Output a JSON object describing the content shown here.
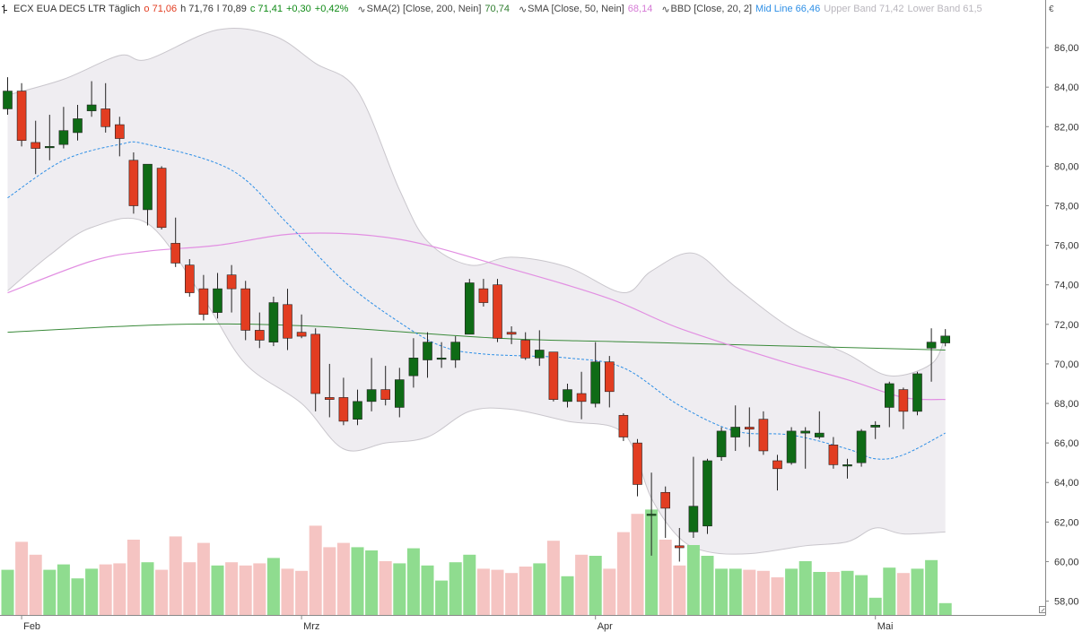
{
  "header": {
    "symbol": "ECX EUA DEC5 LTR Täglich",
    "open": "o 71,06",
    "high": "h 71,76",
    "low": "l 70,89",
    "close": "c 71,41",
    "change": "+0,30",
    "change_pct": "+0,42%",
    "sma200_label": "SMA(2) [Close, 200, Nein]",
    "sma200_value": "70,74",
    "sma50_label": "SMA [Close, 50, Nein]",
    "sma50_value": "68,14",
    "bbd_label": "BBD [Close, 20, 2]",
    "mid_line": "Mid Line 66,46",
    "upper_band": "Upper Band 71,42",
    "lower_band": "Lower Band 61,5",
    "currency": "€"
  },
  "colors": {
    "up": "#0f6b16",
    "down": "#e23d21",
    "vol_up": "#8fdc8f",
    "vol_down": "#f5c4c2",
    "band_fill": "#efedf1",
    "band_line": "#c9c6cc",
    "sma200": "#3a8a3a",
    "sma50": "#e28fe2",
    "mid_line": "#2e8fe6"
  },
  "chart_data": {
    "type": "candlestick",
    "y_axis": {
      "min": 57.3,
      "max": 87.5,
      "ticks": [
        "58,00",
        "60,00",
        "62,00",
        "64,00",
        "66,00",
        "68,00",
        "70,00",
        "72,00",
        "74,00",
        "76,00",
        "78,00",
        "80,00",
        "82,00",
        "84,00",
        "86,00"
      ],
      "tick_values": [
        58,
        60,
        62,
        64,
        66,
        68,
        70,
        72,
        74,
        76,
        78,
        80,
        82,
        84,
        86
      ]
    },
    "x_labels": [
      {
        "label": "Feb",
        "index": 1
      },
      {
        "label": "Mrz",
        "index": 21
      },
      {
        "label": "Apr",
        "index": 42
      },
      {
        "label": "Mai",
        "index": 62
      }
    ],
    "ohlc": [
      [
        82.9,
        84.5,
        82.6,
        83.8
      ],
      [
        83.8,
        84.2,
        81.0,
        81.3
      ],
      [
        81.2,
        82.3,
        79.6,
        80.9
      ],
      [
        81.0,
        82.6,
        80.3,
        81.0
      ],
      [
        81.1,
        83.0,
        80.9,
        81.8
      ],
      [
        81.7,
        83.1,
        81.3,
        82.4
      ],
      [
        82.8,
        84.3,
        82.5,
        83.1
      ],
      [
        82.9,
        84.2,
        81.7,
        82.0
      ],
      [
        82.1,
        82.5,
        80.5,
        81.4
      ],
      [
        80.3,
        80.7,
        77.6,
        78.0
      ],
      [
        77.8,
        80.1,
        77.0,
        80.1
      ],
      [
        79.9,
        80.0,
        76.8,
        76.9
      ],
      [
        76.1,
        77.4,
        74.9,
        75.1
      ],
      [
        75.0,
        75.3,
        73.4,
        73.6
      ],
      [
        73.8,
        74.5,
        72.2,
        72.5
      ],
      [
        72.6,
        74.6,
        72.3,
        73.8
      ],
      [
        74.5,
        75.0,
        72.6,
        73.8
      ],
      [
        73.8,
        74.2,
        71.2,
        71.7
      ],
      [
        71.7,
        72.6,
        70.8,
        71.2
      ],
      [
        71.1,
        73.4,
        70.9,
        73.1
      ],
      [
        73.0,
        73.8,
        70.7,
        71.3
      ],
      [
        71.6,
        72.5,
        71.3,
        71.4
      ],
      [
        71.5,
        71.8,
        67.6,
        68.5
      ],
      [
        68.3,
        70.0,
        67.3,
        68.2
      ],
      [
        68.3,
        69.3,
        66.9,
        67.1
      ],
      [
        67.2,
        68.7,
        66.9,
        68.1
      ],
      [
        68.1,
        70.3,
        67.6,
        68.7
      ],
      [
        68.7,
        69.9,
        67.9,
        68.2
      ],
      [
        67.8,
        69.8,
        67.3,
        69.2
      ],
      [
        69.4,
        71.3,
        68.8,
        70.3
      ],
      [
        70.2,
        71.6,
        69.3,
        71.1
      ],
      [
        70.3,
        71.1,
        69.8,
        70.3
      ],
      [
        70.2,
        71.4,
        69.8,
        71.1
      ],
      [
        71.5,
        74.3,
        71.5,
        74.1
      ],
      [
        73.8,
        74.3,
        72.9,
        73.1
      ],
      [
        74.0,
        74.3,
        71.1,
        71.3
      ],
      [
        71.6,
        71.9,
        71.0,
        71.5
      ],
      [
        71.2,
        71.6,
        70.2,
        70.3
      ],
      [
        70.3,
        71.7,
        69.9,
        70.7
      ],
      [
        70.6,
        70.6,
        68.1,
        68.2
      ],
      [
        68.1,
        69.0,
        67.8,
        68.7
      ],
      [
        68.5,
        69.6,
        67.2,
        68.1
      ],
      [
        68.0,
        71.1,
        67.8,
        70.1
      ],
      [
        70.1,
        70.4,
        67.8,
        68.6
      ],
      [
        67.4,
        67.5,
        66.1,
        66.3
      ],
      [
        66.0,
        66.2,
        63.3,
        63.9
      ],
      [
        62.4,
        64.5,
        60.3,
        62.4
      ],
      [
        63.5,
        63.8,
        61.2,
        62.7
      ],
      [
        60.8,
        61.7,
        60.0,
        60.7
      ],
      [
        61.5,
        65.3,
        61.2,
        62.8
      ],
      [
        61.8,
        65.2,
        61.4,
        65.1
      ],
      [
        65.3,
        66.8,
        65.1,
        66.6
      ],
      [
        66.3,
        67.9,
        65.6,
        66.8
      ],
      [
        66.8,
        67.8,
        65.8,
        66.7
      ],
      [
        67.2,
        67.6,
        65.4,
        65.6
      ],
      [
        65.1,
        65.4,
        63.6,
        64.7
      ],
      [
        65.0,
        66.8,
        64.9,
        66.6
      ],
      [
        66.5,
        66.8,
        64.7,
        66.6
      ],
      [
        66.3,
        67.6,
        66.2,
        66.5
      ],
      [
        65.9,
        66.3,
        64.7,
        64.9
      ],
      [
        64.9,
        65.2,
        64.2,
        64.9
      ],
      [
        65.0,
        66.7,
        64.8,
        66.6
      ],
      [
        66.8,
        67.1,
        66.2,
        66.9
      ],
      [
        67.8,
        69.1,
        66.8,
        69.0
      ],
      [
        68.7,
        68.8,
        66.7,
        67.6
      ],
      [
        67.6,
        69.6,
        67.4,
        69.5
      ],
      [
        70.8,
        71.8,
        69.1,
        71.1
      ],
      [
        71.06,
        71.76,
        70.89,
        71.41
      ]
    ],
    "volume_relative": [
      0.42,
      0.68,
      0.56,
      0.42,
      0.47,
      0.34,
      0.43,
      0.47,
      0.48,
      0.7,
      0.49,
      0.42,
      0.73,
      0.49,
      0.67,
      0.46,
      0.49,
      0.46,
      0.48,
      0.53,
      0.43,
      0.41,
      0.83,
      0.63,
      0.67,
      0.63,
      0.6,
      0.5,
      0.48,
      0.62,
      0.46,
      0.32,
      0.49,
      0.56,
      0.43,
      0.42,
      0.39,
      0.45,
      0.48,
      0.69,
      0.36,
      0.56,
      0.55,
      0.43,
      0.77,
      0.94,
      0.98,
      0.7,
      0.46,
      0.65,
      0.55,
      0.43,
      0.43,
      0.42,
      0.41,
      0.35,
      0.43,
      0.5,
      0.4,
      0.4,
      0.41,
      0.37,
      0.16,
      0.44,
      0.39,
      0.43,
      0.51,
      0.11
    ],
    "sma200": [
      [
        0,
        71.6
      ],
      [
        12,
        72.0
      ],
      [
        22,
        71.9
      ],
      [
        35,
        71.3
      ],
      [
        45,
        71.1
      ],
      [
        67,
        70.7
      ]
    ],
    "sma50": [
      [
        0,
        73.6
      ],
      [
        6,
        75.2
      ],
      [
        10,
        75.7
      ],
      [
        15,
        76.0
      ],
      [
        21,
        76.6
      ],
      [
        28,
        76.3
      ],
      [
        36,
        74.8
      ],
      [
        43,
        73.3
      ],
      [
        48,
        71.8
      ],
      [
        55,
        70.2
      ],
      [
        60,
        69.2
      ],
      [
        64,
        68.3
      ],
      [
        67,
        68.2
      ]
    ],
    "mid_line": [
      [
        0,
        78.4
      ],
      [
        4,
        80.3
      ],
      [
        8,
        81.1
      ],
      [
        10,
        81.1
      ],
      [
        16,
        79.8
      ],
      [
        20,
        77.1
      ],
      [
        24,
        74.2
      ],
      [
        28,
        72.1
      ],
      [
        31,
        70.9
      ],
      [
        34,
        70.5
      ],
      [
        40,
        70.3
      ],
      [
        44,
        69.8
      ],
      [
        48,
        67.9
      ],
      [
        52,
        66.6
      ],
      [
        56,
        66.4
      ],
      [
        60,
        65.7
      ],
      [
        62,
        65.2
      ],
      [
        64,
        65.4
      ],
      [
        67,
        66.5
      ]
    ],
    "upper_band": [
      [
        0,
        83.6
      ],
      [
        4,
        84.4
      ],
      [
        8,
        85.6
      ],
      [
        10,
        85.4
      ],
      [
        15,
        86.9
      ],
      [
        19,
        86.6
      ],
      [
        22,
        85.2
      ],
      [
        25,
        83.8
      ],
      [
        28,
        78.8
      ],
      [
        30,
        76.2
      ],
      [
        33,
        75.0
      ],
      [
        36,
        75.4
      ],
      [
        40,
        74.9
      ],
      [
        44,
        73.6
      ],
      [
        46,
        74.7
      ],
      [
        49,
        75.6
      ],
      [
        52,
        73.9
      ],
      [
        56,
        71.8
      ],
      [
        60,
        70.5
      ],
      [
        63,
        69.4
      ],
      [
        66,
        70.0
      ],
      [
        67,
        71.4
      ]
    ],
    "lower_band": [
      [
        0,
        73.7
      ],
      [
        3,
        75.5
      ],
      [
        6,
        76.9
      ],
      [
        10,
        77.1
      ],
      [
        14,
        73.3
      ],
      [
        17,
        70.0
      ],
      [
        21,
        68.0
      ],
      [
        24,
        65.7
      ],
      [
        27,
        66.0
      ],
      [
        30,
        66.3
      ],
      [
        33,
        67.6
      ],
      [
        36,
        67.7
      ],
      [
        40,
        67.1
      ],
      [
        44,
        66.5
      ],
      [
        46,
        63.2
      ],
      [
        48,
        61.2
      ],
      [
        50,
        60.5
      ],
      [
        53,
        60.4
      ],
      [
        57,
        60.8
      ],
      [
        60,
        61.0
      ],
      [
        62,
        61.7
      ],
      [
        64,
        61.4
      ],
      [
        67,
        61.5
      ]
    ]
  }
}
